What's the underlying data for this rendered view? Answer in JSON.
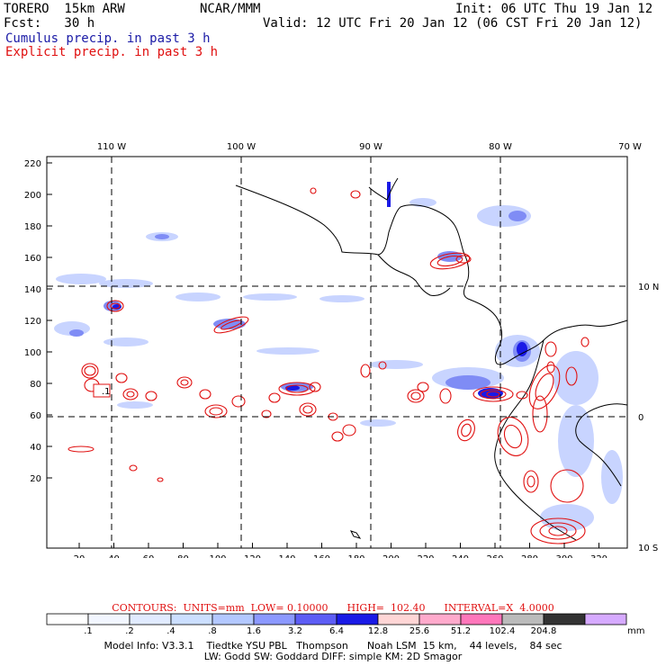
{
  "header": {
    "model": "TORERO  15km ARW",
    "org": "NCAR/MMM",
    "init": "Init: 06 UTC Thu 19 Jan 12",
    "fcst": "Fcst:   30 h",
    "valid": "Valid: 12 UTC Fri 20 Jan 12 (06 CST Fri 20 Jan 12)",
    "cumulus": "Cumulus precip. in past 3 h",
    "explicit": "Explicit precip. in past 3 h"
  },
  "map": {
    "lon_labels": [
      "110 W",
      "100 W",
      "90 W",
      "80 W",
      "70 W"
    ],
    "lat_labels": [
      "10 N",
      "0",
      "10 S"
    ],
    "y_ticks": [
      "220",
      "200",
      "180",
      "160",
      "140",
      "120",
      "100",
      "80",
      "60",
      "40",
      "20"
    ],
    "x_ticks": [
      "20",
      "40",
      "60",
      "80",
      "100",
      "120",
      "140",
      "160",
      "180",
      "200",
      "220",
      "240",
      "260",
      "280",
      "300",
      "320"
    ],
    "box_label": ".1",
    "colors": {
      "cumulus_light": "#c8d4ff",
      "cumulus_mid": "#7f8cf5",
      "cumulus_dark": "#1a1ae6",
      "explicit_contour": "#e01010",
      "coastline": "#000000"
    }
  },
  "contours": {
    "text": "CONTOURS:  UNITS=mm  LOW= 0.10000      HIGH=  102.40      INTERVAL=X  4.0000"
  },
  "colorbar": {
    "colors": [
      "#ffffff",
      "#f2f6ff",
      "#e1ebff",
      "#ccdfff",
      "#b3c8ff",
      "#8c99ff",
      "#5d5df5",
      "#1a1ae6",
      "#ffd6d6",
      "#ffaacc",
      "#ff77bb",
      "#bbbbbb",
      "#333333",
      "#d6aaff"
    ],
    "labels": [
      ".1",
      ".2",
      ".4",
      ".8",
      "1.6",
      "3.2",
      "6.4",
      "12.8",
      "25.6",
      "51.2",
      "102.4",
      "204.8"
    ],
    "unit": "mm"
  },
  "model_info": {
    "line1": "Model Info: V3.3.1    Tiedtke YSU PBL   Thompson      Noah LSM  15 km,    44 levels,    84 sec",
    "line2": "LW: Godd SW: Goddard DIFF: simple KM: 2D Smagor"
  }
}
